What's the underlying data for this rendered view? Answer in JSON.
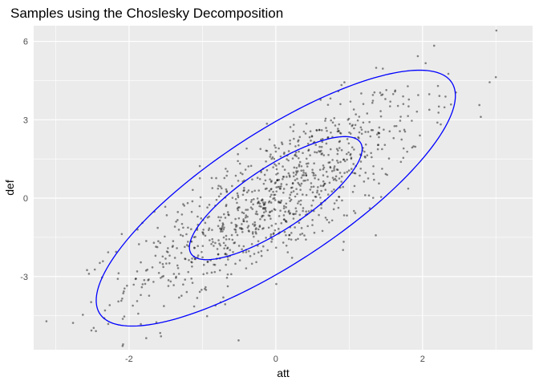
{
  "chart_data": {
    "type": "scatter",
    "title": "Samples using the Choslesky Decomposition",
    "xlabel": "att",
    "ylabel": "def",
    "xlim": [
      -3.3,
      3.5
    ],
    "ylim": [
      -5.8,
      6.6
    ],
    "x_ticks": [
      -2,
      0,
      2
    ],
    "y_ticks": [
      -3,
      0,
      3,
      6
    ],
    "x_minor": [
      -3,
      -1,
      1,
      3
    ],
    "y_minor": [
      -4.5,
      -1.5,
      1.5,
      4.5
    ],
    "grid": true,
    "legend": "none",
    "colors": {
      "panel": "#ebebeb",
      "grid": "#ffffff",
      "points": "#000000",
      "ellipse": "#0000ff"
    },
    "series": [
      {
        "type": "scatter",
        "n_points": 1000,
        "x_mean": 0,
        "y_mean": 0,
        "x_sd": 1,
        "y_sd": 2,
        "correlation": 0.8
      }
    ],
    "ellipses": [
      {
        "level": 0.5,
        "center": [
          0,
          0
        ],
        "covariance": [
          [
            1,
            1.6
          ],
          [
            1.6,
            4
          ]
        ]
      },
      {
        "level": 0.95,
        "center": [
          0,
          0
        ],
        "covariance": [
          [
            1,
            1.6
          ],
          [
            1.6,
            4
          ]
        ]
      }
    ]
  }
}
